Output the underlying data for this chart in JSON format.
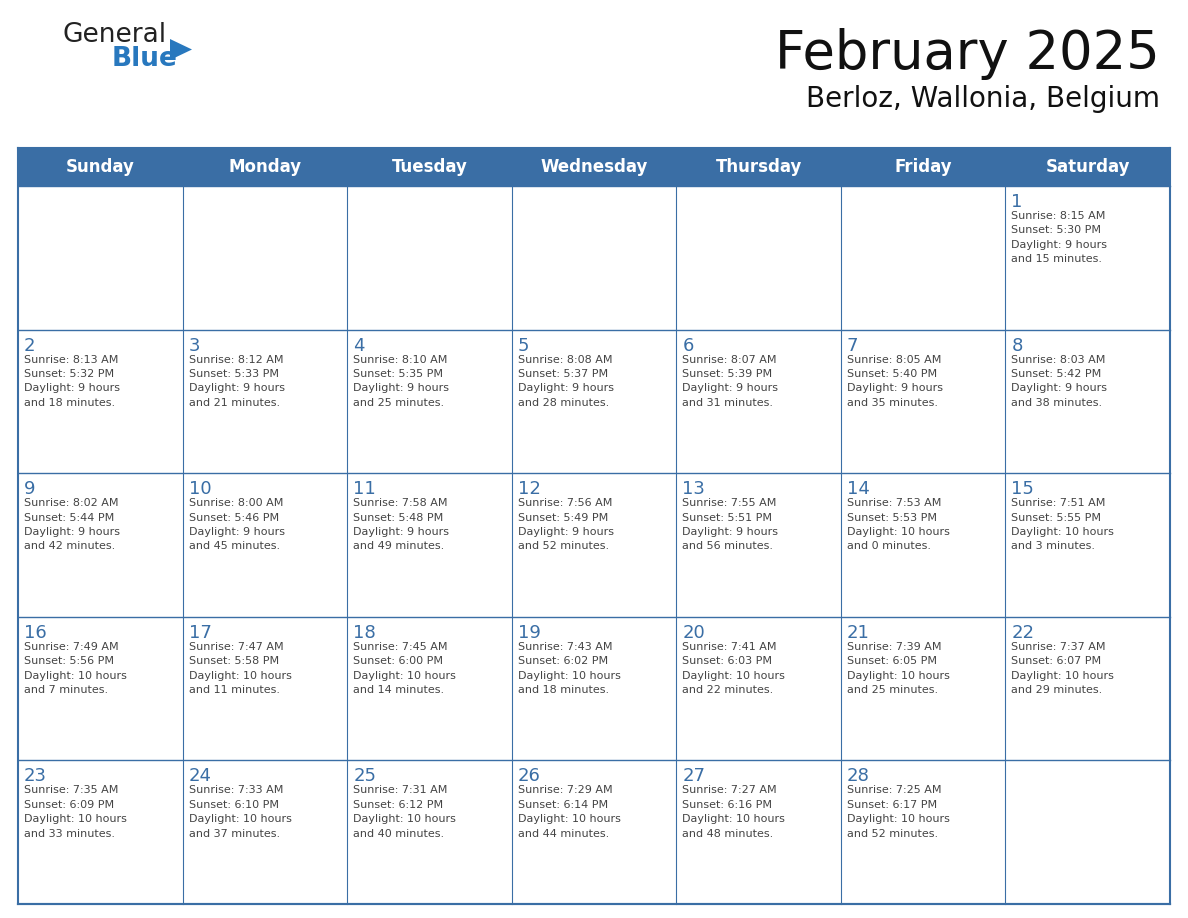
{
  "title": "February 2025",
  "subtitle": "Berloz, Wallonia, Belgium",
  "header_bg_color": "#3A6EA5",
  "header_text_color": "#FFFFFF",
  "header_font_size": 12,
  "day_names": [
    "Sunday",
    "Monday",
    "Tuesday",
    "Wednesday",
    "Thursday",
    "Friday",
    "Saturday"
  ],
  "title_font_size": 38,
  "subtitle_font_size": 20,
  "cell_text_color": "#444444",
  "day_num_color": "#3A6EA5",
  "line_color": "#3A6EA5",
  "bg_color": "#FFFFFF",
  "row_bg_color": "#FFFFFF",
  "logo_color1": "#222222",
  "logo_color2": "#2878BE",
  "logo_triangle_color": "#2878BE",
  "weeks": [
    [
      {
        "date": "",
        "info": ""
      },
      {
        "date": "",
        "info": ""
      },
      {
        "date": "",
        "info": ""
      },
      {
        "date": "",
        "info": ""
      },
      {
        "date": "",
        "info": ""
      },
      {
        "date": "",
        "info": ""
      },
      {
        "date": "1",
        "info": "Sunrise: 8:15 AM\nSunset: 5:30 PM\nDaylight: 9 hours\nand 15 minutes."
      }
    ],
    [
      {
        "date": "2",
        "info": "Sunrise: 8:13 AM\nSunset: 5:32 PM\nDaylight: 9 hours\nand 18 minutes."
      },
      {
        "date": "3",
        "info": "Sunrise: 8:12 AM\nSunset: 5:33 PM\nDaylight: 9 hours\nand 21 minutes."
      },
      {
        "date": "4",
        "info": "Sunrise: 8:10 AM\nSunset: 5:35 PM\nDaylight: 9 hours\nand 25 minutes."
      },
      {
        "date": "5",
        "info": "Sunrise: 8:08 AM\nSunset: 5:37 PM\nDaylight: 9 hours\nand 28 minutes."
      },
      {
        "date": "6",
        "info": "Sunrise: 8:07 AM\nSunset: 5:39 PM\nDaylight: 9 hours\nand 31 minutes."
      },
      {
        "date": "7",
        "info": "Sunrise: 8:05 AM\nSunset: 5:40 PM\nDaylight: 9 hours\nand 35 minutes."
      },
      {
        "date": "8",
        "info": "Sunrise: 8:03 AM\nSunset: 5:42 PM\nDaylight: 9 hours\nand 38 minutes."
      }
    ],
    [
      {
        "date": "9",
        "info": "Sunrise: 8:02 AM\nSunset: 5:44 PM\nDaylight: 9 hours\nand 42 minutes."
      },
      {
        "date": "10",
        "info": "Sunrise: 8:00 AM\nSunset: 5:46 PM\nDaylight: 9 hours\nand 45 minutes."
      },
      {
        "date": "11",
        "info": "Sunrise: 7:58 AM\nSunset: 5:48 PM\nDaylight: 9 hours\nand 49 minutes."
      },
      {
        "date": "12",
        "info": "Sunrise: 7:56 AM\nSunset: 5:49 PM\nDaylight: 9 hours\nand 52 minutes."
      },
      {
        "date": "13",
        "info": "Sunrise: 7:55 AM\nSunset: 5:51 PM\nDaylight: 9 hours\nand 56 minutes."
      },
      {
        "date": "14",
        "info": "Sunrise: 7:53 AM\nSunset: 5:53 PM\nDaylight: 10 hours\nand 0 minutes."
      },
      {
        "date": "15",
        "info": "Sunrise: 7:51 AM\nSunset: 5:55 PM\nDaylight: 10 hours\nand 3 minutes."
      }
    ],
    [
      {
        "date": "16",
        "info": "Sunrise: 7:49 AM\nSunset: 5:56 PM\nDaylight: 10 hours\nand 7 minutes."
      },
      {
        "date": "17",
        "info": "Sunrise: 7:47 AM\nSunset: 5:58 PM\nDaylight: 10 hours\nand 11 minutes."
      },
      {
        "date": "18",
        "info": "Sunrise: 7:45 AM\nSunset: 6:00 PM\nDaylight: 10 hours\nand 14 minutes."
      },
      {
        "date": "19",
        "info": "Sunrise: 7:43 AM\nSunset: 6:02 PM\nDaylight: 10 hours\nand 18 minutes."
      },
      {
        "date": "20",
        "info": "Sunrise: 7:41 AM\nSunset: 6:03 PM\nDaylight: 10 hours\nand 22 minutes."
      },
      {
        "date": "21",
        "info": "Sunrise: 7:39 AM\nSunset: 6:05 PM\nDaylight: 10 hours\nand 25 minutes."
      },
      {
        "date": "22",
        "info": "Sunrise: 7:37 AM\nSunset: 6:07 PM\nDaylight: 10 hours\nand 29 minutes."
      }
    ],
    [
      {
        "date": "23",
        "info": "Sunrise: 7:35 AM\nSunset: 6:09 PM\nDaylight: 10 hours\nand 33 minutes."
      },
      {
        "date": "24",
        "info": "Sunrise: 7:33 AM\nSunset: 6:10 PM\nDaylight: 10 hours\nand 37 minutes."
      },
      {
        "date": "25",
        "info": "Sunrise: 7:31 AM\nSunset: 6:12 PM\nDaylight: 10 hours\nand 40 minutes."
      },
      {
        "date": "26",
        "info": "Sunrise: 7:29 AM\nSunset: 6:14 PM\nDaylight: 10 hours\nand 44 minutes."
      },
      {
        "date": "27",
        "info": "Sunrise: 7:27 AM\nSunset: 6:16 PM\nDaylight: 10 hours\nand 48 minutes."
      },
      {
        "date": "28",
        "info": "Sunrise: 7:25 AM\nSunset: 6:17 PM\nDaylight: 10 hours\nand 52 minutes."
      },
      {
        "date": "",
        "info": ""
      }
    ]
  ]
}
